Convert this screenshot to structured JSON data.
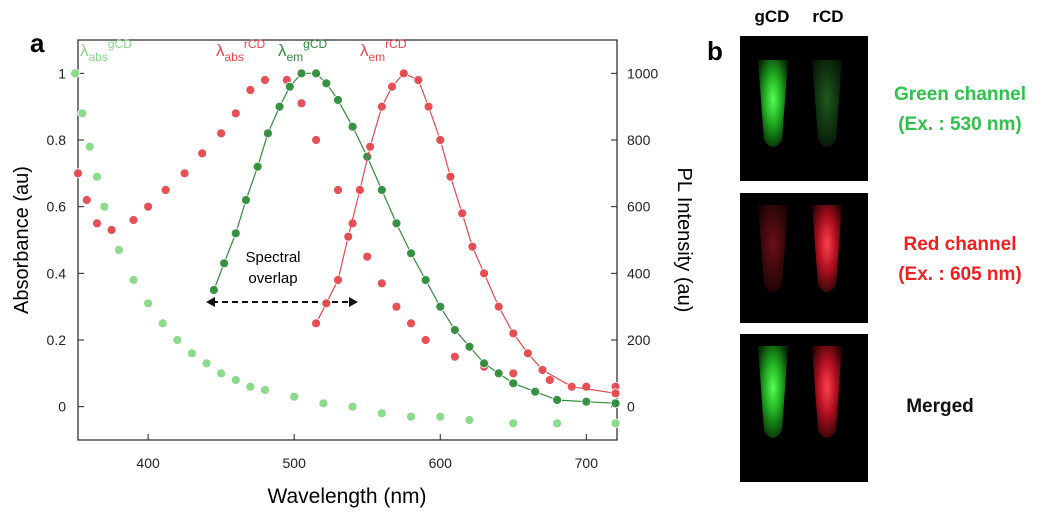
{
  "chart_data": {
    "type": "scatter",
    "panel": "a",
    "xlabel": "Wavelength (nm)",
    "ylabel": "Absorbance (au)",
    "y2label": "PL Intensity (au)",
    "xlim": [
      352,
      721
    ],
    "xticks": [
      400,
      500,
      600,
      700
    ],
    "ylim": [
      -0.1,
      1.1
    ],
    "yticks": [
      0,
      0.2,
      0.4,
      0.6,
      0.8,
      1
    ],
    "y2lim": [
      -100,
      1100
    ],
    "y2ticks": [
      0,
      200,
      400,
      600,
      800,
      1000
    ],
    "series": [
      {
        "name": "λ",
        "sub": "abs",
        "sup": "gCD",
        "color": "#86d886",
        "axis": "y",
        "x": [
          350,
          355,
          360,
          365,
          370,
          375,
          380,
          390,
          400,
          410,
          420,
          430,
          440,
          450,
          460,
          470,
          480,
          500,
          520,
          540,
          560,
          580,
          600,
          620,
          650,
          680,
          720
        ],
        "values": [
          1.0,
          0.88,
          0.78,
          0.69,
          0.6,
          0.53,
          0.47,
          0.38,
          0.31,
          0.25,
          0.2,
          0.16,
          0.13,
          0.1,
          0.08,
          0.06,
          0.05,
          0.03,
          0.01,
          0,
          -0.02,
          -0.03,
          -0.03,
          -0.04,
          -0.05,
          -0.05,
          -0.05
        ]
      },
      {
        "name": "λ",
        "sub": "abs",
        "sup": "rCD",
        "color": "#e4484d",
        "axis": "y",
        "x": [
          352,
          358,
          365,
          375,
          390,
          400,
          412,
          425,
          437,
          450,
          460,
          470,
          480,
          495,
          505,
          515,
          530,
          540,
          550,
          560,
          570,
          580,
          590,
          610,
          630,
          650,
          675,
          700,
          720
        ],
        "values": [
          0.7,
          0.62,
          0.55,
          0.53,
          0.56,
          0.6,
          0.65,
          0.7,
          0.76,
          0.82,
          0.88,
          0.95,
          0.98,
          0.98,
          0.91,
          0.8,
          0.65,
          0.55,
          0.45,
          0.37,
          0.3,
          0.25,
          0.2,
          0.15,
          0.12,
          0.1,
          0.08,
          0.06,
          0.06
        ]
      },
      {
        "name": "λ",
        "sub": "em",
        "sup": "gCD",
        "color": "#2f8c3a",
        "axis": "y2",
        "x": [
          445,
          452,
          460,
          467,
          475,
          482,
          490,
          497,
          505,
          515,
          522,
          530,
          540,
          550,
          560,
          570,
          580,
          590,
          600,
          610,
          620,
          630,
          640,
          650,
          665,
          680,
          700,
          720
        ],
        "values": [
          350,
          430,
          520,
          620,
          720,
          820,
          900,
          960,
          1000,
          1000,
          970,
          920,
          840,
          750,
          650,
          550,
          460,
          380,
          300,
          230,
          180,
          130,
          100,
          70,
          45,
          20,
          15,
          10
        ]
      },
      {
        "name": "λ",
        "sub": "em",
        "sup": "rCD",
        "color": "#e4484d",
        "axis": "y2",
        "x": [
          515,
          522,
          530,
          537,
          545,
          552,
          560,
          567,
          575,
          585,
          592,
          600,
          607,
          615,
          622,
          630,
          640,
          650,
          660,
          670,
          690,
          720
        ],
        "values": [
          250,
          310,
          380,
          510,
          650,
          780,
          900,
          960,
          1000,
          980,
          900,
          800,
          690,
          580,
          480,
          400,
          300,
          220,
          160,
          110,
          60,
          40
        ]
      }
    ],
    "annotation": [
      "Spectral",
      "overlap"
    ]
  },
  "panel_b": {
    "label": "b",
    "columns": [
      "gCD",
      "rCD"
    ],
    "rows": [
      [
        "Green channel",
        "(Ex. : 530 nm)"
      ],
      [
        "Red channel",
        "(Ex. : 605 nm)"
      ],
      [
        "Merged"
      ]
    ]
  }
}
